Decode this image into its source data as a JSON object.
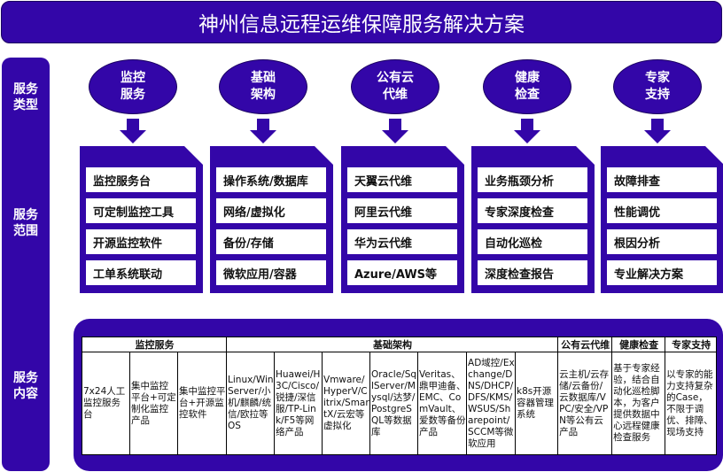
{
  "title": "神州信息远程运维保障服务解决方案",
  "side_labels": [
    "服务\n类型",
    "服务\n范围",
    "服务\n内容"
  ],
  "service_types": [
    {
      "name": "监控\n服务",
      "items": [
        "监控服务台",
        "可定制监控工具",
        "开源监控软件",
        "工单系统联动"
      ]
    },
    {
      "name": "基础\n架构",
      "items": [
        "操作系统/数据库",
        "网络/虚拟化",
        "备份/存储",
        "微软应用/容器"
      ]
    },
    {
      "name": "公有云\n代维",
      "items": [
        "天翼云代维",
        "阿里云代维",
        "华为云代维",
        "Azure/AWS等"
      ]
    },
    {
      "name": "健康\n检查",
      "items": [
        "业务瓶颈分析",
        "专家深度检查",
        "自动化巡检",
        "深度检查报告"
      ]
    },
    {
      "name": "专家\n支持",
      "items": [
        "故障排查",
        "性能调优",
        "根因分析",
        "专业解决方案"
      ]
    }
  ],
  "table": {
    "headers": [
      {
        "label": "监控服务",
        "span": 3
      },
      {
        "label": "基础架构",
        "span": 7
      },
      {
        "label": "公有云代维",
        "span": 1
      },
      {
        "label": "健康检查",
        "span": 1
      },
      {
        "label": "专家支持",
        "span": 1
      }
    ],
    "cells": [
      "7x24人工监控服务台",
      "集中监控平台+可定制化监控产品",
      "集中监控平台+开源监控软件",
      "Linux/Win Server/小机/麒麟/统信/欧拉等OS",
      "Huawei/H3C/Cisco/锐捷/深信服/TP-Link/F5等网络产品",
      "Vmware/HyperV/Citrix/SmartX/云宏等虚拟化",
      "Oracle/SqlServer/Mysql/达梦/PostgreSQL等数据库",
      "Veritas、鼎甲迪备、EMC、ComVault、爱数等备份产品",
      "AD域控/Exchange/DNS/DHCP/DFS/KMS/WSUS/Sharepoint/SCCM等微软应用",
      "k8s开源容器管理系统",
      "云主机/云存储/云备份/云数据库/VPC/安全/VPN等公有云产品",
      "基于专家经验，结合自动化巡检脚本，为客户提供数据中心远程健康检查服务",
      "以专家的能力支持复杂的Case，不限于调优、排障、现场支持"
    ]
  },
  "colors": {
    "primary": "#3306a8"
  }
}
